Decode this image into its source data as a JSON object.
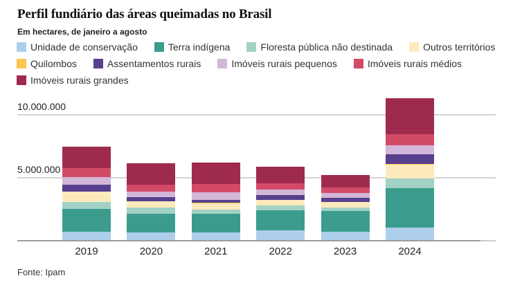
{
  "header": {
    "title": "Perfil fundiário das áreas queimadas no Brasil",
    "subtitle": "Em hectares, de janeiro a agosto"
  },
  "footer": {
    "source": "Fonte: Ipam"
  },
  "colors": {
    "background": "#ffffff",
    "gridline": "#d4d4d4",
    "axis_line": "#9b9b9b",
    "text_primary": "#111111",
    "text_secondary": "#333333"
  },
  "chart_data": {
    "type": "bar",
    "stacked": true,
    "title": "Perfil fundiário das áreas queimadas no Brasil",
    "subtitle": "Em hectares, de janeiro a agosto",
    "unit": "hectares",
    "xlabel": "",
    "ylabel": "",
    "grid": true,
    "legend_position": "top",
    "categories": [
      "2019",
      "2020",
      "2021",
      "2022",
      "2023",
      "2024"
    ],
    "series": [
      {
        "name": "Unidade de conservação",
        "color": "#aecfeb",
        "values": [
          720000,
          680000,
          680000,
          800000,
          720000,
          1070000
        ]
      },
      {
        "name": "Terra indígena",
        "color": "#3b9c8d",
        "values": [
          1800000,
          1490000,
          1490000,
          1620000,
          1620000,
          3130000
        ]
      },
      {
        "name": "Floresta pública não destinada",
        "color": "#a2d1c5",
        "values": [
          550000,
          450000,
          310000,
          390000,
          320000,
          770000
        ]
      },
      {
        "name": "Outros territórios",
        "color": "#fdeabc",
        "values": [
          810000,
          490000,
          500000,
          420000,
          420000,
          1100000
        ]
      },
      {
        "name": "Quilombos",
        "color": "#fcc653",
        "values": [
          20000,
          20000,
          20000,
          20000,
          20000,
          30000
        ]
      },
      {
        "name": "Assentamentos rurais",
        "color": "#57408d",
        "values": [
          580000,
          360000,
          250000,
          390000,
          310000,
          790000
        ]
      },
      {
        "name": "Imóveis rurais pequenos",
        "color": "#d2b7d8",
        "values": [
          580000,
          410000,
          590000,
          450000,
          390000,
          680000
        ]
      },
      {
        "name": "Imóveis rurais médios",
        "color": "#d34a67",
        "values": [
          690000,
          580000,
          660000,
          470000,
          450000,
          920000
        ]
      },
      {
        "name": "Imóveis rurais grandes",
        "color": "#9e2b4d",
        "values": [
          1710000,
          1660000,
          1710000,
          1300000,
          990000,
          2820000
        ]
      }
    ],
    "yticks": [
      {
        "value": 5000000,
        "label": "5.000.000"
      },
      {
        "value": 10000000,
        "label": "10.000.000"
      }
    ],
    "ylim": [
      0,
      11500000
    ]
  }
}
